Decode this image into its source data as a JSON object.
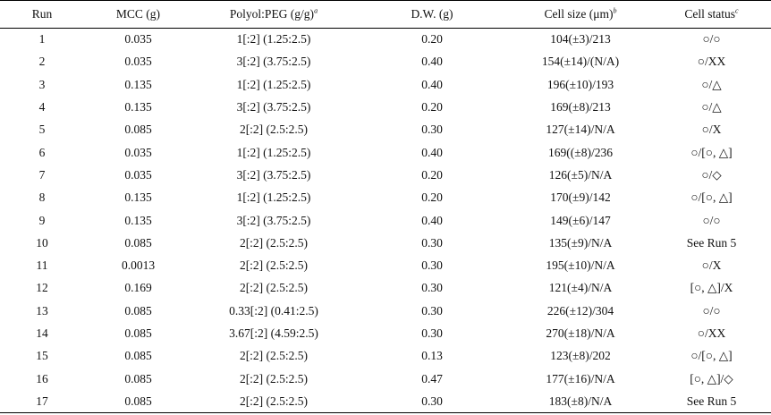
{
  "table": {
    "headers": {
      "run": "Run",
      "mcc": "MCC (g)",
      "polyol": "Polyol:PEG (g/g)",
      "polyol_note": "a",
      "dw": "D.W. (g)",
      "cell_size": "Cell size (μm)",
      "cell_size_note": "b",
      "cell_status": "Cell status",
      "cell_status_note": "c"
    },
    "rows": [
      {
        "run": "1",
        "mcc": "0.035",
        "polyol": "1[:2] (1.25:2.5)",
        "dw": "0.20",
        "cell_size": "104(±3)/213",
        "status": "○/○"
      },
      {
        "run": "2",
        "mcc": "0.035",
        "polyol": "3[:2] (3.75:2.5)",
        "dw": "0.40",
        "cell_size": "154(±14)/(N/A)",
        "status": "○/XX"
      },
      {
        "run": "3",
        "mcc": "0.135",
        "polyol": "1[:2] (1.25:2.5)",
        "dw": "0.40",
        "cell_size": "196(±10)/193",
        "status": "○/△"
      },
      {
        "run": "4",
        "mcc": "0.135",
        "polyol": "3[:2] (3.75:2.5)",
        "dw": "0.20",
        "cell_size": "169(±8)/213",
        "status": "○/△"
      },
      {
        "run": "5",
        "mcc": "0.085",
        "polyol": "2[:2] (2.5:2.5)",
        "dw": "0.30",
        "cell_size": "127(±14)/N/A",
        "status": "○/X"
      },
      {
        "run": "6",
        "mcc": "0.035",
        "polyol": "1[:2] (1.25:2.5)",
        "dw": "0.40",
        "cell_size": "169((±8)/236",
        "status": "○/[○, △]"
      },
      {
        "run": "7",
        "mcc": "0.035",
        "polyol": "3[:2] (3.75:2.5)",
        "dw": "0.20",
        "cell_size": "126(±5)/N/A",
        "status": "○/◇"
      },
      {
        "run": "8",
        "mcc": "0.135",
        "polyol": "1[:2] (1.25:2.5)",
        "dw": "0.20",
        "cell_size": "170(±9)/142",
        "status": "○/[○, △]"
      },
      {
        "run": "9",
        "mcc": "0.135",
        "polyol": "3[:2] (3.75:2.5)",
        "dw": "0.40",
        "cell_size": "149(±6)/147",
        "status": "○/○"
      },
      {
        "run": "10",
        "mcc": "0.085",
        "polyol": "2[:2] (2.5:2.5)",
        "dw": "0.30",
        "cell_size": "135(±9)/N/A",
        "status": "See Run 5"
      },
      {
        "run": "11",
        "mcc": "0.0013",
        "polyol": "2[:2] (2.5:2.5)",
        "dw": "0.30",
        "cell_size": "195(±10)/N/A",
        "status": "○/X"
      },
      {
        "run": "12",
        "mcc": "0.169",
        "polyol": "2[:2] (2.5:2.5)",
        "dw": "0.30",
        "cell_size": "121(±4)/N/A",
        "status": "[○, △]/X"
      },
      {
        "run": "13",
        "mcc": "0.085",
        "polyol": "0.33[:2] (0.41:2.5)",
        "dw": "0.30",
        "cell_size": "226(±12)/304",
        "status": "○/○"
      },
      {
        "run": "14",
        "mcc": "0.085",
        "polyol": "3.67[:2] (4.59:2.5)",
        "dw": "0.30",
        "cell_size": "270(±18)/N/A",
        "status": "○/XX"
      },
      {
        "run": "15",
        "mcc": "0.085",
        "polyol": "2[:2] (2.5:2.5)",
        "dw": "0.13",
        "cell_size": "123(±8)/202",
        "status": "○/[○, △]"
      },
      {
        "run": "16",
        "mcc": "0.085",
        "polyol": "2[:2] (2.5:2.5)",
        "dw": "0.47",
        "cell_size": "177(±16)/N/A",
        "status": "[○, △]/◇"
      },
      {
        "run": "17",
        "mcc": "0.085",
        "polyol": "2[:2] (2.5:2.5)",
        "dw": "0.30",
        "cell_size": "183(±8)/N/A",
        "status": "See Run 5"
      }
    ]
  }
}
